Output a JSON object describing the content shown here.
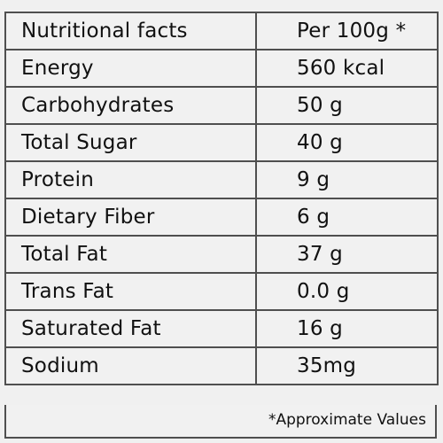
{
  "table": {
    "header": {
      "label": "Nutritional facts",
      "value": "Per 100g *"
    },
    "rows": [
      {
        "label": "Energy",
        "value": "560 kcal"
      },
      {
        "label": "Carbohydrates",
        "value": "50 g"
      },
      {
        "label": "Total Sugar",
        "value": "40 g"
      },
      {
        "label": "Protein",
        "value": "9 g"
      },
      {
        "label": "Dietary Fiber",
        "value": "6 g"
      },
      {
        "label": "Total Fat",
        "value": "37 g"
      },
      {
        "label": "Trans Fat",
        "value": "0.0 g"
      },
      {
        "label": "Saturated Fat",
        "value": "16 g"
      },
      {
        "label": "Sodium",
        "value": "35mg"
      }
    ]
  },
  "footnote": "*Approximate Values"
}
